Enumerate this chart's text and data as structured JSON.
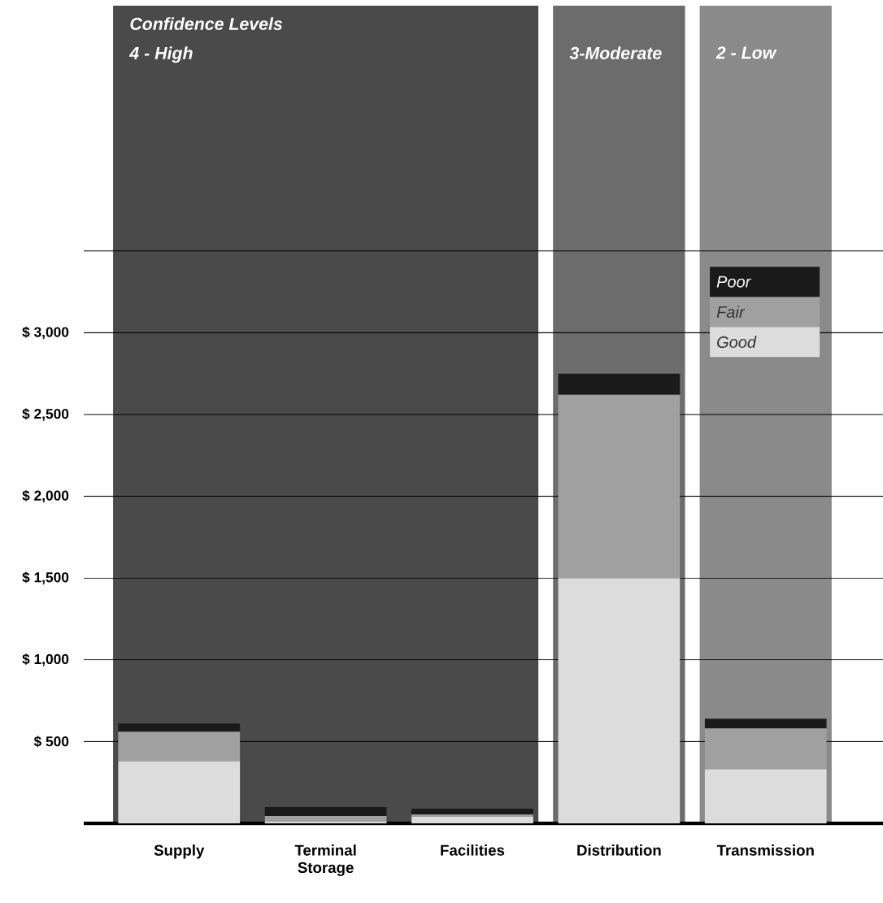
{
  "chart_data": {
    "type": "bar",
    "title": "Confidence Levels",
    "categories": [
      "Supply",
      "Terminal Storage",
      "Facilities",
      "Distribution",
      "Transmission"
    ],
    "stacked": true,
    "series": [
      {
        "name": "Good",
        "color": "#dcdcdc",
        "values": [
          380,
          10,
          40,
          1500,
          330
        ]
      },
      {
        "name": "Fair",
        "color": "#a0a0a0",
        "values": [
          180,
          35,
          15,
          1120,
          250
        ]
      },
      {
        "name": "Poor",
        "color": "#1a1a1a",
        "values": [
          50,
          55,
          35,
          130,
          60
        ]
      }
    ],
    "ylim": [
      0,
      5000
    ],
    "yticks": [
      {
        "value": 500,
        "label": "$ 500"
      },
      {
        "value": 1000,
        "label": "$ 1,000"
      },
      {
        "value": 1500,
        "label": "$ 1,500"
      },
      {
        "value": 2000,
        "label": "$ 2,000"
      },
      {
        "value": 2500,
        "label": "$ 2,500"
      },
      {
        "value": 3000,
        "label": "$ 3,000"
      },
      {
        "value": 3500,
        "label": null
      }
    ],
    "grid": "y",
    "legend": "top right",
    "bands": [
      {
        "axis": "x",
        "from": "Supply",
        "to": "Facilities",
        "label": "4 - High",
        "color": "#4a4a4a"
      },
      {
        "axis": "x",
        "from": "Distribution",
        "to": "Distribution",
        "label": "3-Moderate",
        "color": "#6c6c6c"
      },
      {
        "axis": "x",
        "from": "Transmission",
        "to": "Transmission",
        "label": "2 - Low",
        "color": "#8a8a8a"
      }
    ]
  }
}
